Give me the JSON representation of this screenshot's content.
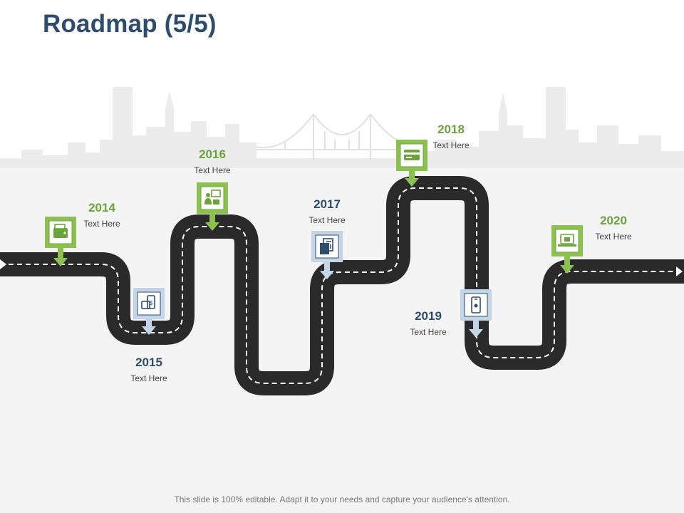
{
  "slide": {
    "title": "Roadmap (5/5)",
    "footer": "This slide is 100% editable. Adapt it to your needs and capture your audience's attention."
  },
  "colors": {
    "title": "#2e4d6e",
    "road": "#2a2a2a",
    "dash": "#ffffff",
    "green_accent": "#8cc152",
    "green_text": "#6aa53a",
    "blue_accent": "#c5d5e8",
    "blue_text": "#2e4d6e",
    "skyline": "#ececec",
    "background_lower": "#f4f4f4"
  },
  "milestones": [
    {
      "year": "2014",
      "text": "Text Here",
      "color": "green",
      "icon": "wallet-icon"
    },
    {
      "year": "2015",
      "text": "Text Here",
      "color": "blue",
      "icon": "mobile-payment-icon"
    },
    {
      "year": "2016",
      "text": "Text Here",
      "color": "green",
      "icon": "presentation-icon"
    },
    {
      "year": "2017",
      "text": "Text Here",
      "color": "blue",
      "icon": "documents-icon"
    },
    {
      "year": "2018",
      "text": "Text Here",
      "color": "green",
      "icon": "credit-card-icon"
    },
    {
      "year": "2019",
      "text": "Text Here",
      "color": "blue",
      "icon": "smartphone-icon"
    },
    {
      "year": "2020",
      "text": "Text Here",
      "color": "green",
      "icon": "laptop-icon"
    }
  ]
}
